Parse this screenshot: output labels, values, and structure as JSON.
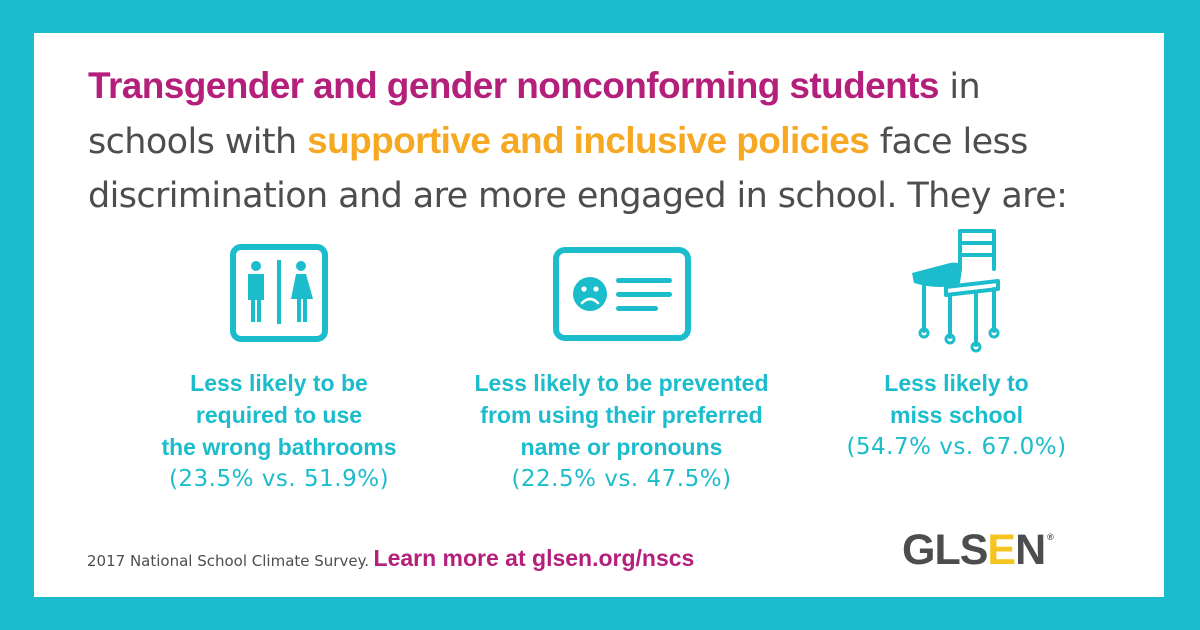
{
  "headline": {
    "part1": "Transgender and gender nonconforming students",
    "part2": " in schools with ",
    "part3": "supportive and inclusive policies",
    "part4": " face less discrimination and are more engaged in school. They are:"
  },
  "stats": [
    {
      "icon": "restroom-sign-icon",
      "label_lines": [
        "Less likely to be",
        "required to use",
        "the wrong bathrooms"
      ],
      "value": "(23.5% vs. 51.9%)"
    },
    {
      "icon": "id-card-sad-face-icon",
      "label_lines": [
        "Less likely to be prevented",
        "from using their preferred",
        "name or pronouns"
      ],
      "value": "(22.5% vs. 47.5%)"
    },
    {
      "icon": "school-desk-icon",
      "label_lines": [
        "Less likely to",
        "miss school"
      ],
      "value": "(54.7% vs. 67.0%)"
    }
  ],
  "footer": {
    "source": "2017 National School Climate Survey.",
    "learn_more": "Learn more at glsen.org/nscs"
  },
  "logo": {
    "pre": "GLS",
    "e": "E",
    "post": "N",
    "mark": "®"
  },
  "colors": {
    "background": "#1bbccc",
    "magenta": "#b41f7b",
    "orange": "#f7a823",
    "teal": "#1bbccc",
    "gray": "#4d4d4f",
    "logo_yellow": "#f7c41f"
  }
}
